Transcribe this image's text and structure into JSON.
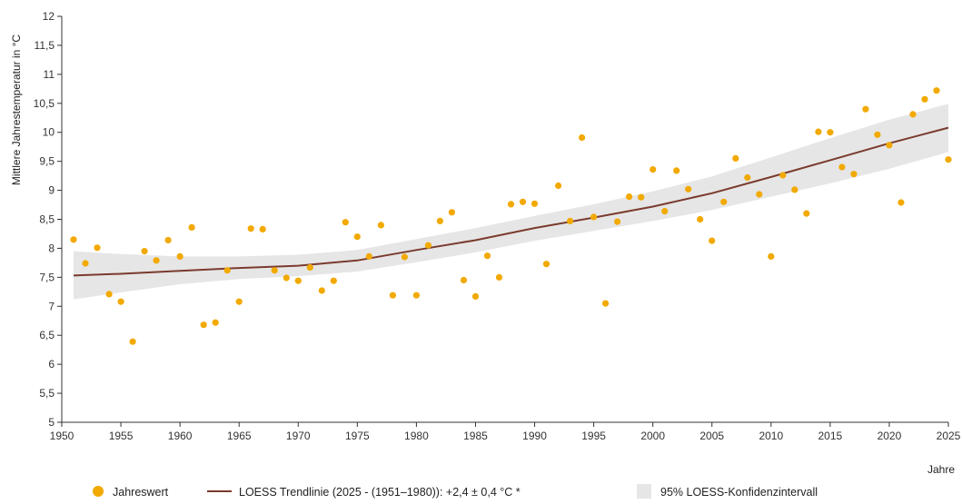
{
  "colors": {
    "point": "#F2A900",
    "trend": "#7A3B2E",
    "band": "#E6E6E6",
    "axis": "#333333"
  },
  "chart_data": {
    "type": "scatter",
    "xlabel": "Jahre",
    "ylabel": "Mittlere Jahrestemperatur in °C",
    "xlim": [
      1950,
      2025
    ],
    "ylim": [
      5,
      12
    ],
    "x_ticks": [
      1950,
      1955,
      1960,
      1965,
      1970,
      1975,
      1980,
      1985,
      1990,
      1995,
      2000,
      2005,
      2010,
      2015,
      2020,
      2025
    ],
    "y_ticks": [
      5,
      5.5,
      6,
      6.5,
      7,
      7.5,
      8,
      8.5,
      9,
      9.5,
      10,
      10.5,
      11,
      11.5,
      12
    ],
    "y_tick_labels": [
      "5",
      "5,5",
      "6",
      "6,5",
      "7",
      "7,5",
      "8",
      "8,5",
      "9",
      "9,5",
      "10",
      "10,5",
      "11",
      "11,5",
      "12"
    ],
    "grid": false,
    "legend_position": "bottom",
    "legend": [
      {
        "kind": "point",
        "label": "Jahreswert"
      },
      {
        "kind": "line",
        "label": "LOESS Trendlinie (2025 - (1951–1980)): +2,4 ± 0,4 °C *"
      },
      {
        "kind": "band",
        "label": "95% LOESS-Konfidenzintervall"
      }
    ],
    "series": [
      {
        "name": "Jahreswert",
        "kind": "scatter",
        "x": [
          1951,
          1952,
          1953,
          1954,
          1955,
          1956,
          1957,
          1958,
          1959,
          1960,
          1961,
          1962,
          1963,
          1964,
          1965,
          1966,
          1967,
          1968,
          1969,
          1970,
          1971,
          1972,
          1973,
          1974,
          1975,
          1976,
          1977,
          1978,
          1979,
          1980,
          1981,
          1982,
          1983,
          1984,
          1985,
          1986,
          1987,
          1988,
          1989,
          1990,
          1991,
          1992,
          1993,
          1994,
          1995,
          1996,
          1997,
          1998,
          1999,
          2000,
          2001,
          2002,
          2003,
          2004,
          2005,
          2006,
          2007,
          2008,
          2009,
          2010,
          2011,
          2012,
          2013,
          2014,
          2015,
          2016,
          2017,
          2018,
          2019,
          2020,
          2021,
          2022,
          2023,
          2024,
          2025
        ],
        "y": [
          8.15,
          7.74,
          8.01,
          7.21,
          7.08,
          6.39,
          7.95,
          7.79,
          8.14,
          7.86,
          8.36,
          6.68,
          6.72,
          7.62,
          7.08,
          8.34,
          8.33,
          7.62,
          7.49,
          7.44,
          7.67,
          7.27,
          7.44,
          8.45,
          8.2,
          7.86,
          8.4,
          7.19,
          7.85,
          7.19,
          8.05,
          8.47,
          8.62,
          7.45,
          7.17,
          7.87,
          7.5,
          8.76,
          8.8,
          8.77,
          7.73,
          9.08,
          8.47,
          9.91,
          8.54,
          7.05,
          8.46,
          8.89,
          8.88,
          9.36,
          8.64,
          9.34,
          9.02,
          8.5,
          8.13,
          8.8,
          9.55,
          9.22,
          8.93,
          7.86,
          9.26,
          9.01,
          8.6,
          10.01,
          10.0,
          9.4,
          9.28,
          10.4,
          9.96,
          9.78,
          8.79,
          10.31,
          10.57,
          10.72,
          9.53
        ]
      },
      {
        "name": "LOESS Trendlinie",
        "kind": "line",
        "x": [
          1951,
          1955,
          1960,
          1965,
          1970,
          1975,
          1980,
          1985,
          1990,
          1995,
          2000,
          2005,
          2010,
          2015,
          2020,
          2025
        ],
        "y": [
          7.53,
          7.56,
          7.61,
          7.66,
          7.7,
          7.79,
          7.97,
          8.14,
          8.35,
          8.53,
          8.72,
          8.95,
          9.23,
          9.52,
          9.81,
          10.08
        ]
      },
      {
        "name": "95% LOESS-Konfidenzintervall",
        "kind": "band",
        "x": [
          1951,
          1955,
          1960,
          1965,
          1970,
          1975,
          1980,
          1985,
          1990,
          1995,
          2000,
          2005,
          2010,
          2015,
          2020,
          2025
        ],
        "lower": [
          7.12,
          7.24,
          7.38,
          7.47,
          7.52,
          7.6,
          7.76,
          7.93,
          8.13,
          8.3,
          8.47,
          8.66,
          8.89,
          9.12,
          9.37,
          9.66
        ],
        "upper": [
          7.95,
          7.9,
          7.86,
          7.86,
          7.89,
          7.97,
          8.16,
          8.35,
          8.56,
          8.76,
          8.98,
          9.24,
          9.57,
          9.9,
          10.22,
          10.49
        ]
      }
    ]
  }
}
